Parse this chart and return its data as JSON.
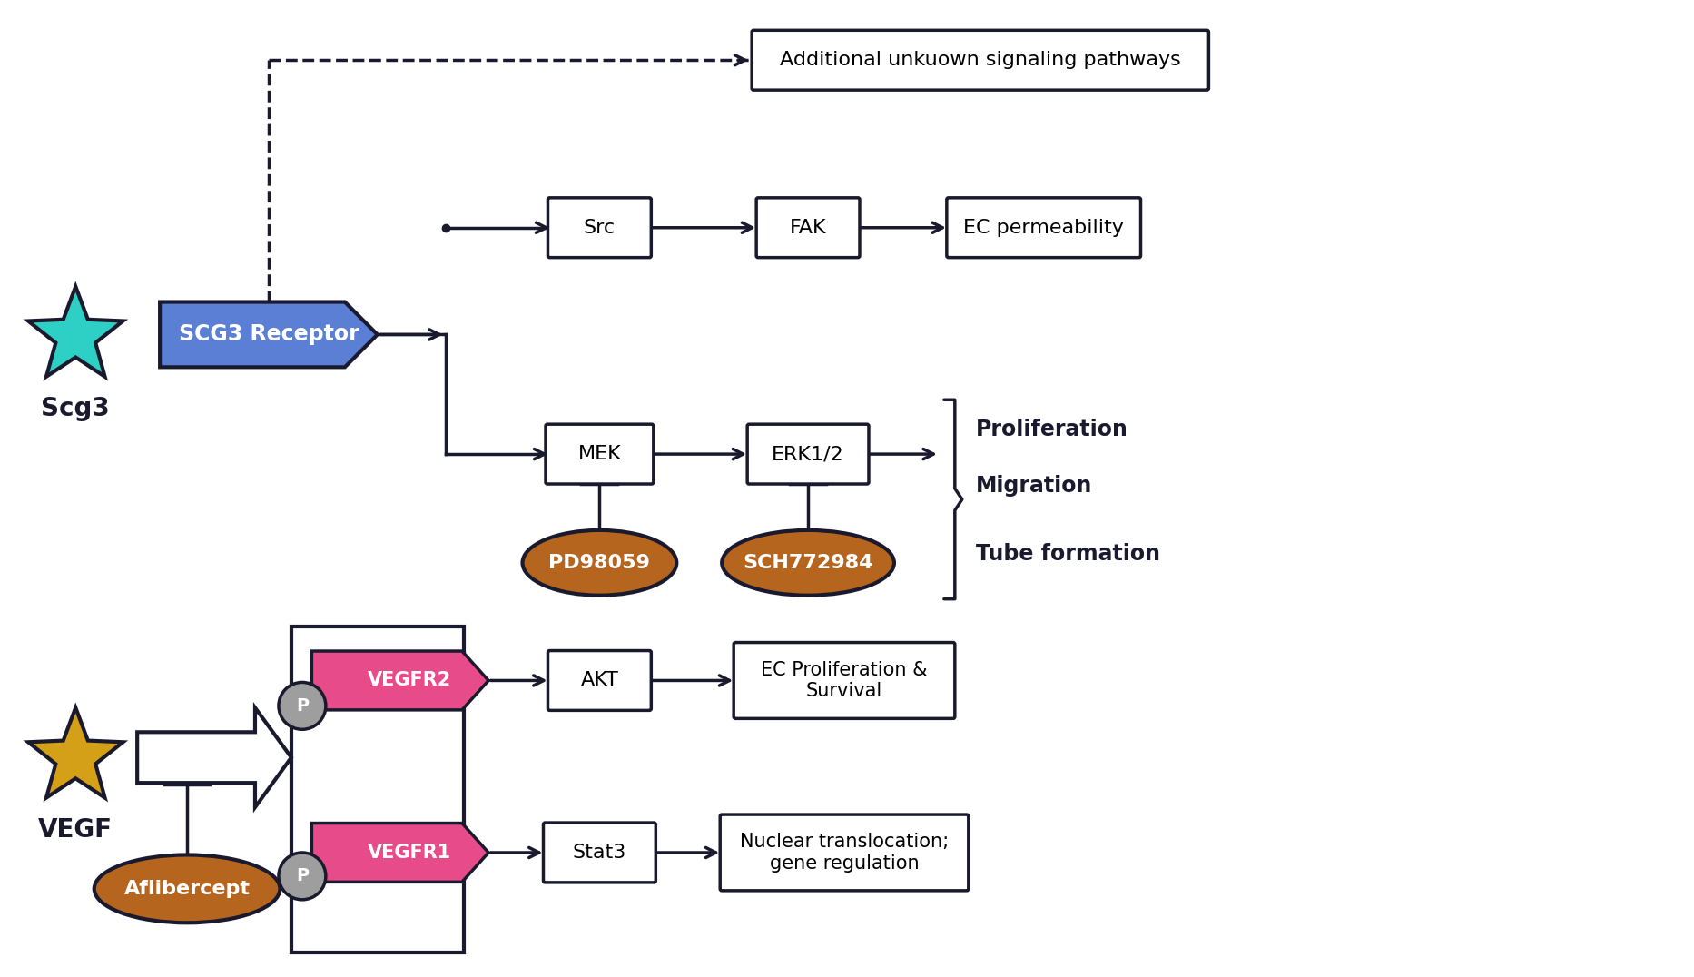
{
  "bg_color": "#ffffff",
  "scg3_star_color": "#2ecfc4",
  "scg3_star_outline": "#1a1a2e",
  "scg3_label": "Scg3",
  "vegf_star_color": "#d4a017",
  "vegf_star_outline": "#1a1a2e",
  "vegf_label": "VEGF",
  "scg3_receptor_color": "#5b7fd4",
  "scg3_receptor_text": "SCG3 Receptor",
  "scg3_receptor_text_color": "#ffffff",
  "vegfr2_color": "#e84b8a",
  "vegfr2_text": "VEGFR2",
  "vegfr1_color": "#e84b8a",
  "vegfr1_text": "VEGFR1",
  "vegfr_text_color": "#ffffff",
  "p_circle_color": "#9e9e9e",
  "box_outline_color": "#1a1a2e",
  "ellipse_brown_color": "#b5651d",
  "ellipse_text_color": "#ffffff",
  "arrow_color": "#1a1a2e",
  "proliferation_text": "Proliferation",
  "migration_text": "Migration",
  "tube_formation_text": "Tube formation",
  "aflibercept_text": "Aflibercept",
  "additional_text": "Additional unkuown signaling pathways",
  "src_text": "Src",
  "fak_text": "FAK",
  "ec_perm_text": "EC permeability",
  "mek_text": "MEK",
  "erk_text": "ERK1/2",
  "pd_text": "PD98059",
  "sch_text": "SCH772984",
  "akt_text": "AKT",
  "ec_prolif_text": "EC Proliferation &\nSurvival",
  "stat3_text": "Stat3",
  "nuclear_text": "Nuclear translocation;\ngene regulation"
}
